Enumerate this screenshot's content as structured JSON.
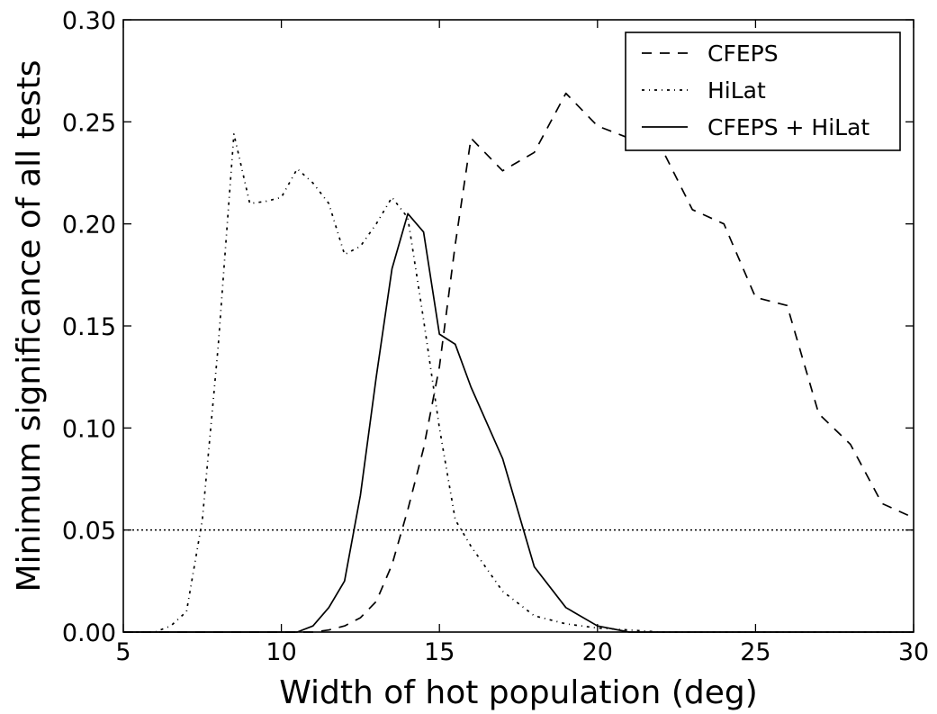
{
  "chart_data": {
    "type": "line",
    "xlabel": "Width of hot population (deg)",
    "ylabel": "Minimum significance of all tests",
    "xlim": [
      5,
      30
    ],
    "ylim": [
      0,
      0.3
    ],
    "xticks": [
      5,
      10,
      15,
      20,
      25,
      30
    ],
    "yticks": [
      0.0,
      0.05,
      0.1,
      0.15,
      0.2,
      0.25,
      0.3
    ],
    "xtick_labels": [
      "5",
      "10",
      "15",
      "20",
      "25",
      "30"
    ],
    "ytick_labels": [
      "0.00",
      "0.05",
      "0.10",
      "0.15",
      "0.20",
      "0.25",
      "0.30"
    ],
    "grid": false,
    "legend_position": "top-right",
    "reference_line": {
      "y": 0.05,
      "style": "dotted"
    },
    "series": [
      {
        "name": "CFEPS",
        "style": "dashed",
        "color": "#000000",
        "x": [
          5,
          10,
          11,
          11.5,
          12,
          12.5,
          13,
          13.5,
          14,
          14.5,
          15,
          15.5,
          16,
          17,
          18,
          19,
          20,
          21,
          22,
          23,
          24,
          25,
          26,
          27,
          28,
          29,
          30
        ],
        "y": [
          0.0,
          0.0,
          0.0,
          0.001,
          0.003,
          0.007,
          0.015,
          0.033,
          0.06,
          0.09,
          0.13,
          0.19,
          0.242,
          0.226,
          0.235,
          0.264,
          0.248,
          0.242,
          0.238,
          0.207,
          0.2,
          0.164,
          0.16,
          0.107,
          0.092,
          0.063,
          0.056
        ]
      },
      {
        "name": "HiLat",
        "style": "dashdot",
        "color": "#000000",
        "x": [
          5,
          6,
          6.5,
          7,
          7.5,
          8,
          8.5,
          9,
          9.5,
          10,
          10.5,
          11,
          11.5,
          12,
          12.5,
          13,
          13.5,
          14,
          14.5,
          15,
          15.5,
          16,
          17,
          18,
          19,
          20,
          21,
          22,
          30
        ],
        "y": [
          0.0,
          0.0,
          0.003,
          0.01,
          0.055,
          0.14,
          0.244,
          0.21,
          0.211,
          0.213,
          0.227,
          0.22,
          0.21,
          0.185,
          0.189,
          0.2,
          0.213,
          0.203,
          0.153,
          0.1,
          0.055,
          0.042,
          0.02,
          0.008,
          0.004,
          0.002,
          0.001,
          0.0,
          0.0
        ]
      },
      {
        "name": "CFEPS + HiLat",
        "style": "solid",
        "color": "#000000",
        "x": [
          5,
          10.5,
          11,
          11.5,
          12,
          12.5,
          13,
          13.5,
          14,
          14.5,
          15,
          15.5,
          16,
          17,
          18,
          19,
          20,
          21,
          30
        ],
        "y": [
          0.0,
          0.0,
          0.003,
          0.012,
          0.025,
          0.067,
          0.125,
          0.178,
          0.205,
          0.196,
          0.146,
          0.141,
          0.12,
          0.085,
          0.032,
          0.012,
          0.003,
          0.0,
          0.0
        ]
      }
    ]
  }
}
